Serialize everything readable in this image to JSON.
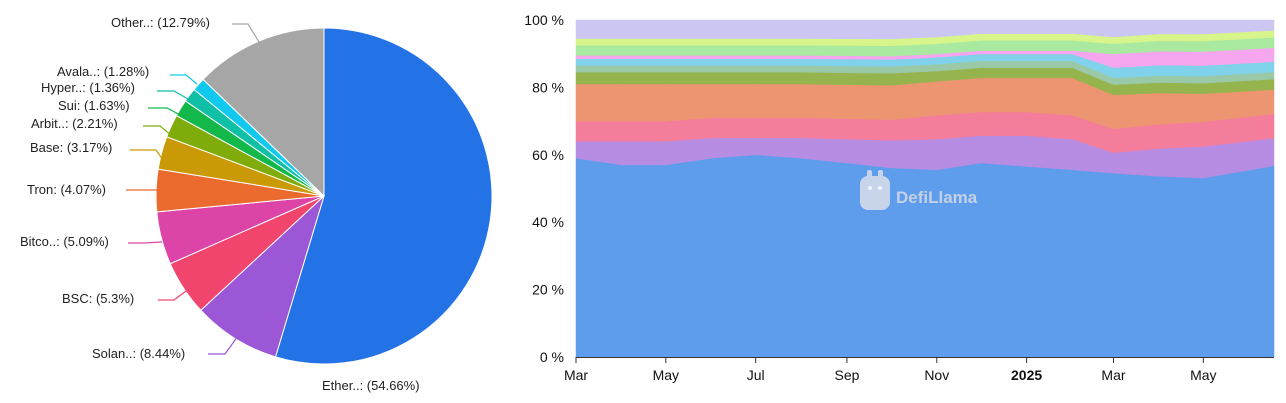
{
  "chart_data": [
    {
      "type": "pie",
      "slices": [
        {
          "label": "Ether..",
          "display": "Ether..: (54.66%)",
          "value": 54.66,
          "color": "#2473e6"
        },
        {
          "label": "Solan..",
          "display": "Solan..: (8.44%)",
          "value": 8.44,
          "color": "#9b57d6"
        },
        {
          "label": "BSC",
          "display": "BSC: (5.3%)",
          "value": 5.3,
          "color": "#f2456e"
        },
        {
          "label": "Bitco..",
          "display": "Bitco..: (5.09%)",
          "value": 5.09,
          "color": "#dc44a8"
        },
        {
          "label": "Tron",
          "display": "Tron: (4.07%)",
          "value": 4.07,
          "color": "#eb6a2e"
        },
        {
          "label": "Base",
          "display": "Base: (3.17%)",
          "value": 3.17,
          "color": "#c99a05"
        },
        {
          "label": "Arbit..",
          "display": "Arbit..: (2.21%)",
          "value": 2.21,
          "color": "#7fac0a"
        },
        {
          "label": "Sui",
          "display": "Sui: (1.63%)",
          "value": 1.63,
          "color": "#12b94a"
        },
        {
          "label": "Hyper..",
          "display": "Hyper..: (1.36%)",
          "value": 1.36,
          "color": "#0fbfa6"
        },
        {
          "label": "Avala..",
          "display": "Avala..: (1.28%)",
          "value": 1.28,
          "color": "#11c9ee"
        },
        {
          "label": "Other..",
          "display": "Other..: (12.79%)",
          "value": 12.79,
          "color": "#a6a6a6"
        }
      ]
    },
    {
      "type": "area",
      "stacked": true,
      "percent": true,
      "ylim": [
        0,
        100
      ],
      "y_ticks": [
        "0 %",
        "20 %",
        "40 %",
        "60 %",
        "80 %",
        "100 %"
      ],
      "x_ticks": [
        {
          "label": "Mar",
          "date": "2024-03",
          "bold": false
        },
        {
          "label": "May",
          "date": "2024-05",
          "bold": false
        },
        {
          "label": "Jul",
          "date": "2024-07",
          "bold": false
        },
        {
          "label": "Sep",
          "date": "2024-09",
          "bold": false
        },
        {
          "label": "Nov",
          "date": "2024-11",
          "bold": false
        },
        {
          "label": "2025",
          "date": "2025-01",
          "bold": true
        },
        {
          "label": "Mar",
          "date": "2025-03",
          "bold": false
        },
        {
          "label": "May",
          "date": "2025-05",
          "bold": false
        }
      ],
      "x_dates": [
        "2024-03-01",
        "2024-04-01",
        "2024-05-01",
        "2024-06-01",
        "2024-07-01",
        "2024-08-01",
        "2024-09-01",
        "2024-10-01",
        "2024-11-01",
        "2024-12-01",
        "2025-01-01",
        "2025-02-01",
        "2025-03-01",
        "2025-04-01",
        "2025-05-01",
        "2025-06-01"
      ],
      "series": [
        {
          "color": "#5e9cec",
          "values": [
            59,
            57,
            57,
            59,
            60,
            59,
            57,
            55,
            55,
            57,
            56,
            55,
            54,
            52,
            51,
            55
          ]
        },
        {
          "color": "#b78ce3",
          "values": [
            5,
            7,
            7,
            6,
            5,
            6,
            7,
            8,
            9,
            8,
            9,
            9,
            6,
            8,
            9,
            8
          ]
        },
        {
          "color": "#f57d9c",
          "values": [
            6,
            6,
            6,
            6,
            6,
            6,
            6,
            6,
            7,
            7,
            7,
            7,
            7,
            7,
            7,
            7
          ]
        },
        {
          "color": "#ec9570",
          "values": [
            11,
            11,
            11,
            10,
            10,
            10,
            10,
            10,
            10,
            10,
            10,
            11,
            10,
            9,
            8,
            7
          ]
        },
        {
          "color": "#95b44d",
          "values": [
            3.5,
            3.5,
            3.5,
            3.5,
            3.5,
            3.5,
            3.5,
            3.5,
            3,
            3,
            3,
            3,
            3,
            3,
            3,
            3
          ]
        },
        {
          "color": "#9ac9a8",
          "values": [
            2,
            2,
            2,
            2,
            2,
            2,
            2,
            2,
            2,
            2,
            2,
            2,
            2,
            2,
            2,
            2
          ]
        },
        {
          "color": "#7fd2ea",
          "values": [
            2,
            2,
            2,
            2,
            2,
            2,
            2,
            2,
            2,
            2,
            2,
            2,
            3,
            3,
            3,
            3
          ]
        },
        {
          "color": "#f5a6ee",
          "values": [
            1,
            1,
            1,
            1,
            1,
            1,
            1,
            1,
            1,
            1,
            1,
            1,
            4,
            4,
            4,
            4
          ]
        },
        {
          "color": "#a9e9a0",
          "values": [
            3,
            3,
            3,
            3,
            3,
            3,
            3,
            3,
            3,
            3,
            3,
            3,
            3,
            3,
            3,
            3
          ]
        },
        {
          "color": "#d7f58a",
          "values": [
            2,
            2,
            2,
            2,
            2,
            2,
            2,
            2,
            2,
            2,
            2,
            2,
            2,
            2,
            2,
            2
          ]
        },
        {
          "color": "#ccc6f2",
          "values": [
            5.5,
            5.5,
            5.5,
            5.5,
            5.5,
            5.5,
            5.5,
            5.5,
            5,
            4,
            4,
            4,
            5,
            4,
            4,
            3
          ]
        }
      ],
      "watermark": "DefiLlama"
    }
  ]
}
